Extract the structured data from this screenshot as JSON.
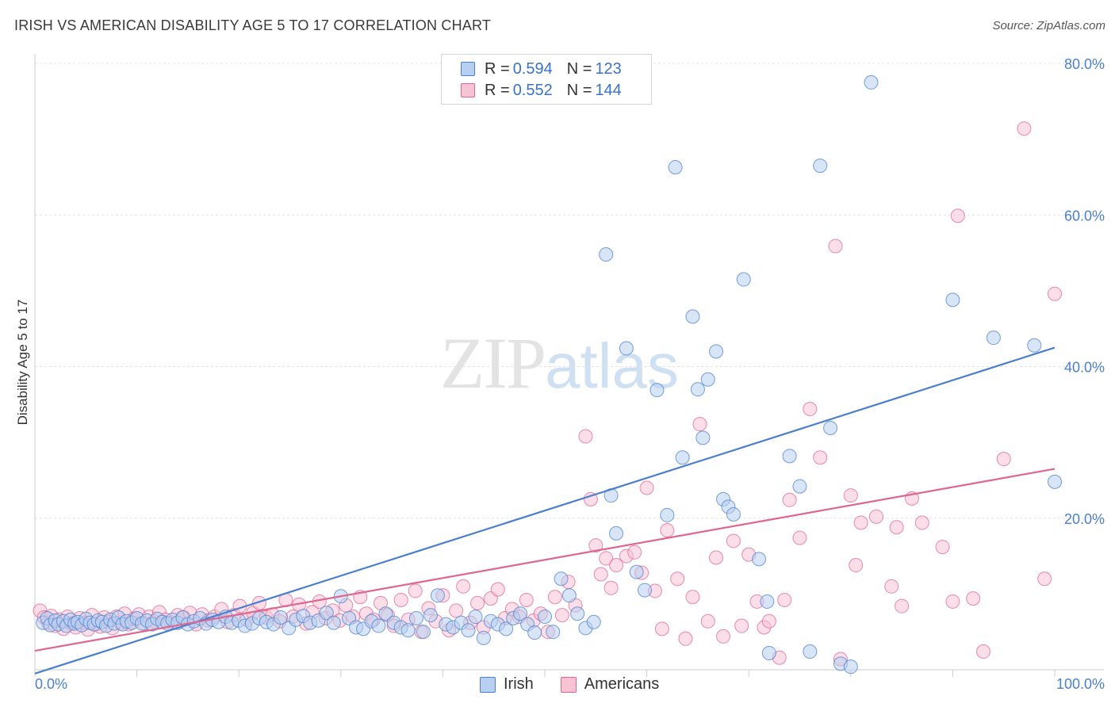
{
  "header": {
    "title": "IRISH VS AMERICAN DISABILITY AGE 5 TO 17 CORRELATION CHART",
    "source": "Source: ZipAtlas.com"
  },
  "watermark": {
    "zip": "ZIP",
    "atlas": "atlas"
  },
  "legend": {
    "rows": [
      {
        "r_label": "R =",
        "r_value": "0.594",
        "n_label": "N =",
        "n_value": "123",
        "color": "#9fc3ee"
      },
      {
        "r_label": "R =",
        "r_value": "0.552",
        "n_label": "N =",
        "n_value": "144",
        "color": "#f6b8cb"
      }
    ]
  },
  "bottom_legend": [
    {
      "label": "Irish",
      "color": "#9fc3ee"
    },
    {
      "label": "Americans",
      "color": "#f6b8cb"
    }
  ],
  "chart_data": {
    "type": "scatter",
    "title": "IRISH VS AMERICAN DISABILITY AGE 5 TO 17 CORRELATION CHART",
    "xlabel": "",
    "ylabel": "Disability Age 5 to 17",
    "xlim": [
      0,
      100
    ],
    "ylim": [
      0,
      80
    ],
    "x_tick_labels": [
      "0.0%",
      "100.0%"
    ],
    "y_ticks": [
      20,
      40,
      60,
      80
    ],
    "y_tick_labels": [
      "20.0%",
      "40.0%",
      "60.0%",
      "80.0%"
    ],
    "grid": true,
    "colors": {
      "irish": "#4a7fd0",
      "irish_fill": "#b7d0f1",
      "americans": "#e06690",
      "americans_fill": "#f8c3d3"
    },
    "series": [
      {
        "name": "Irish",
        "trend": {
          "x": [
            0,
            100
          ],
          "y": [
            -0.5,
            42.5
          ]
        },
        "points": [
          [
            0.8,
            6.2
          ],
          [
            1.2,
            6.8
          ],
          [
            1.5,
            5.9
          ],
          [
            2.0,
            6.5
          ],
          [
            2.3,
            6.0
          ],
          [
            2.8,
            6.4
          ],
          [
            3.1,
            5.8
          ],
          [
            3.5,
            6.6
          ],
          [
            3.9,
            6.1
          ],
          [
            4.2,
            6.3
          ],
          [
            4.6,
            5.9
          ],
          [
            5.0,
            6.7
          ],
          [
            5.4,
            6.2
          ],
          [
            5.8,
            6.0
          ],
          [
            6.2,
            6.5
          ],
          [
            6.6,
            6.3
          ],
          [
            7.0,
            5.8
          ],
          [
            7.4,
            6.6
          ],
          [
            7.8,
            6.1
          ],
          [
            8.2,
            6.9
          ],
          [
            8.6,
            6.0
          ],
          [
            9.0,
            6.4
          ],
          [
            9.5,
            6.2
          ],
          [
            10.0,
            6.8
          ],
          [
            10.5,
            6.1
          ],
          [
            11.0,
            6.5
          ],
          [
            11.5,
            6.0
          ],
          [
            12.0,
            6.7
          ],
          [
            12.5,
            6.3
          ],
          [
            13.0,
            6.1
          ],
          [
            13.5,
            6.6
          ],
          [
            14.0,
            6.2
          ],
          [
            14.5,
            6.9
          ],
          [
            15.0,
            6.0
          ],
          [
            15.6,
            6.4
          ],
          [
            16.2,
            6.8
          ],
          [
            16.8,
            6.1
          ],
          [
            17.4,
            6.6
          ],
          [
            18.0,
            6.3
          ],
          [
            18.7,
            7.0
          ],
          [
            19.3,
            6.2
          ],
          [
            20.0,
            6.5
          ],
          [
            20.6,
            5.8
          ],
          [
            21.3,
            6.1
          ],
          [
            22.0,
            6.8
          ],
          [
            22.7,
            6.3
          ],
          [
            23.4,
            6.0
          ],
          [
            24.1,
            6.9
          ],
          [
            24.9,
            5.5
          ],
          [
            25.6,
            6.6
          ],
          [
            26.3,
            7.1
          ],
          [
            27.0,
            6.2
          ],
          [
            27.8,
            6.5
          ],
          [
            28.6,
            7.5
          ],
          [
            29.3,
            6.2
          ],
          [
            30.0,
            9.7
          ],
          [
            30.8,
            6.8
          ],
          [
            31.5,
            5.6
          ],
          [
            32.2,
            5.4
          ],
          [
            33.0,
            6.4
          ],
          [
            33.7,
            5.8
          ],
          [
            34.4,
            7.4
          ],
          [
            35.2,
            6.2
          ],
          [
            35.9,
            5.6
          ],
          [
            36.6,
            5.2
          ],
          [
            37.4,
            6.8
          ],
          [
            38.1,
            5.0
          ],
          [
            38.8,
            7.2
          ],
          [
            39.5,
            9.8
          ],
          [
            40.3,
            6.0
          ],
          [
            41.0,
            5.6
          ],
          [
            41.8,
            6.2
          ],
          [
            42.5,
            5.2
          ],
          [
            43.2,
            7.0
          ],
          [
            44.0,
            4.2
          ],
          [
            44.7,
            6.4
          ],
          [
            45.4,
            6.0
          ],
          [
            46.2,
            5.4
          ],
          [
            46.9,
            6.8
          ],
          [
            47.6,
            7.4
          ],
          [
            48.3,
            6.0
          ],
          [
            49.0,
            4.9
          ],
          [
            50.0,
            7.0
          ],
          [
            50.8,
            5.0
          ],
          [
            51.6,
            12.0
          ],
          [
            52.4,
            9.8
          ],
          [
            53.2,
            7.4
          ],
          [
            54.0,
            5.5
          ],
          [
            54.8,
            6.3
          ],
          [
            56.0,
            54.8
          ],
          [
            56.5,
            23.0
          ],
          [
            57.0,
            18.0
          ],
          [
            58.0,
            42.4
          ],
          [
            59.0,
            12.9
          ],
          [
            59.8,
            10.5
          ],
          [
            61.0,
            36.9
          ],
          [
            62.0,
            20.4
          ],
          [
            62.8,
            66.3
          ],
          [
            63.5,
            28.0
          ],
          [
            64.5,
            46.6
          ],
          [
            65.0,
            37.0
          ],
          [
            65.5,
            30.6
          ],
          [
            66.0,
            38.3
          ],
          [
            66.8,
            42.0
          ],
          [
            67.5,
            22.5
          ],
          [
            68.0,
            21.5
          ],
          [
            68.5,
            20.5
          ],
          [
            69.5,
            51.5
          ],
          [
            71.0,
            14.6
          ],
          [
            71.8,
            9.0
          ],
          [
            72.0,
            2.2
          ],
          [
            74.0,
            28.2
          ],
          [
            75.0,
            24.2
          ],
          [
            77.0,
            66.5
          ],
          [
            78.0,
            31.9
          ],
          [
            79.0,
            0.8
          ],
          [
            80.0,
            0.4
          ],
          [
            82.0,
            77.5
          ],
          [
            90.0,
            48.8
          ],
          [
            94.0,
            43.8
          ],
          [
            98.0,
            42.8
          ],
          [
            100.0,
            24.8
          ],
          [
            76.0,
            2.4
          ]
        ]
      },
      {
        "name": "Americans",
        "trend": {
          "x": [
            0,
            100
          ],
          "y": [
            2.5,
            26.5
          ]
        },
        "points": [
          [
            0.5,
            7.8
          ],
          [
            0.9,
            6.9
          ],
          [
            1.3,
            6.2
          ],
          [
            1.6,
            7.1
          ],
          [
            2.0,
            5.8
          ],
          [
            2.4,
            6.6
          ],
          [
            2.8,
            5.4
          ],
          [
            3.2,
            7.0
          ],
          [
            3.6,
            6.1
          ],
          [
            4.0,
            5.6
          ],
          [
            4.4,
            6.8
          ],
          [
            4.8,
            6.2
          ],
          [
            5.2,
            5.3
          ],
          [
            5.6,
            7.2
          ],
          [
            6.0,
            6.0
          ],
          [
            6.4,
            5.7
          ],
          [
            6.8,
            6.9
          ],
          [
            7.2,
            6.3
          ],
          [
            7.6,
            5.5
          ],
          [
            8.0,
            7.0
          ],
          [
            8.4,
            6.2
          ],
          [
            8.8,
            7.4
          ],
          [
            9.2,
            6.0
          ],
          [
            9.7,
            6.7
          ],
          [
            10.2,
            7.3
          ],
          [
            10.7,
            6.1
          ],
          [
            11.2,
            7.0
          ],
          [
            11.7,
            6.4
          ],
          [
            12.2,
            7.6
          ],
          [
            12.8,
            6.6
          ],
          [
            13.4,
            6.2
          ],
          [
            14.0,
            7.2
          ],
          [
            14.6,
            6.9
          ],
          [
            15.2,
            7.5
          ],
          [
            15.8,
            6.0
          ],
          [
            16.4,
            7.3
          ],
          [
            17.0,
            6.5
          ],
          [
            17.6,
            7.0
          ],
          [
            18.3,
            8.0
          ],
          [
            18.9,
            6.3
          ],
          [
            19.5,
            7.2
          ],
          [
            20.1,
            8.4
          ],
          [
            20.8,
            6.6
          ],
          [
            21.4,
            7.5
          ],
          [
            22.0,
            8.8
          ],
          [
            22.7,
            6.9
          ],
          [
            23.3,
            7.3
          ],
          [
            24.0,
            6.4
          ],
          [
            24.6,
            9.2
          ],
          [
            25.3,
            7.0
          ],
          [
            25.9,
            8.6
          ],
          [
            26.6,
            6.1
          ],
          [
            27.2,
            7.6
          ],
          [
            27.9,
            9.0
          ],
          [
            28.5,
            6.8
          ],
          [
            29.2,
            7.8
          ],
          [
            29.9,
            6.5
          ],
          [
            30.5,
            8.5
          ],
          [
            31.2,
            7.0
          ],
          [
            31.9,
            9.6
          ],
          [
            32.5,
            7.4
          ],
          [
            33.2,
            6.6
          ],
          [
            33.9,
            8.8
          ],
          [
            34.6,
            7.2
          ],
          [
            35.2,
            5.8
          ],
          [
            35.9,
            9.2
          ],
          [
            36.6,
            6.6
          ],
          [
            37.3,
            10.4
          ],
          [
            37.9,
            5.0
          ],
          [
            38.6,
            8.1
          ],
          [
            39.3,
            6.4
          ],
          [
            40.0,
            9.8
          ],
          [
            40.6,
            5.2
          ],
          [
            41.3,
            7.8
          ],
          [
            42.0,
            11.0
          ],
          [
            42.7,
            6.2
          ],
          [
            43.4,
            8.8
          ],
          [
            44.0,
            5.6
          ],
          [
            44.7,
            9.4
          ],
          [
            45.4,
            10.6
          ],
          [
            46.1,
            6.8
          ],
          [
            46.8,
            8.0
          ],
          [
            47.5,
            7.0
          ],
          [
            48.2,
            9.2
          ],
          [
            48.9,
            6.5
          ],
          [
            49.6,
            7.4
          ],
          [
            50.3,
            5.0
          ],
          [
            51.0,
            9.6
          ],
          [
            51.7,
            7.2
          ],
          [
            52.3,
            11.6
          ],
          [
            53.0,
            8.5
          ],
          [
            54.0,
            30.8
          ],
          [
            54.5,
            22.5
          ],
          [
            55.0,
            16.4
          ],
          [
            55.5,
            12.6
          ],
          [
            56.0,
            14.7
          ],
          [
            56.5,
            10.8
          ],
          [
            57.0,
            13.8
          ],
          [
            58.0,
            15.0
          ],
          [
            58.8,
            15.5
          ],
          [
            59.5,
            12.8
          ],
          [
            60.0,
            24.0
          ],
          [
            60.8,
            10.4
          ],
          [
            61.5,
            5.4
          ],
          [
            62.0,
            18.4
          ],
          [
            63.0,
            12.0
          ],
          [
            63.8,
            4.1
          ],
          [
            64.5,
            9.6
          ],
          [
            65.2,
            32.4
          ],
          [
            66.0,
            6.4
          ],
          [
            66.8,
            14.8
          ],
          [
            67.5,
            4.4
          ],
          [
            68.5,
            17.0
          ],
          [
            69.3,
            5.8
          ],
          [
            70.0,
            15.2
          ],
          [
            70.8,
            9.0
          ],
          [
            71.5,
            5.6
          ],
          [
            72.0,
            6.4
          ],
          [
            73.0,
            1.6
          ],
          [
            74.0,
            22.4
          ],
          [
            75.0,
            17.4
          ],
          [
            76.0,
            34.4
          ],
          [
            77.0,
            28.0
          ],
          [
            78.5,
            55.9
          ],
          [
            80.0,
            23.0
          ],
          [
            81.0,
            19.4
          ],
          [
            82.5,
            20.2
          ],
          [
            84.0,
            11.0
          ],
          [
            85.0,
            8.4
          ],
          [
            86.0,
            22.6
          ],
          [
            87.0,
            19.4
          ],
          [
            89.0,
            16.2
          ],
          [
            90.5,
            59.9
          ],
          [
            92.0,
            9.4
          ],
          [
            93.0,
            2.4
          ],
          [
            95.0,
            27.8
          ],
          [
            97.0,
            71.4
          ],
          [
            99.0,
            12.0
          ],
          [
            100.0,
            49.6
          ],
          [
            79.0,
            1.4
          ],
          [
            73.5,
            9.2
          ],
          [
            80.5,
            13.8
          ],
          [
            84.5,
            18.8
          ],
          [
            90.0,
            9.0
          ]
        ]
      }
    ]
  }
}
